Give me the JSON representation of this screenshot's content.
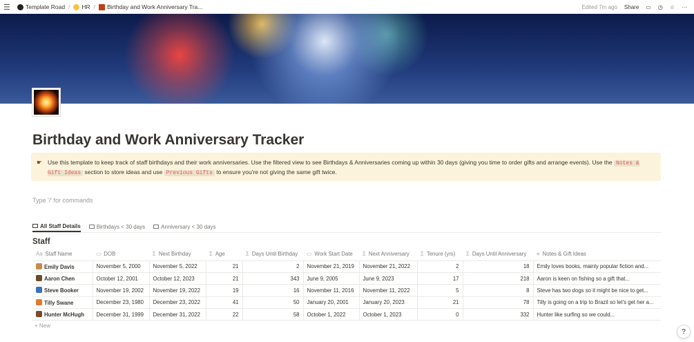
{
  "topbar": {
    "breadcrumbs": [
      "Template Road",
      "HR",
      "Birthday and Work Anniversary Tra..."
    ],
    "edited": "Edited 7m ago",
    "share": "Share"
  },
  "page": {
    "title": "Birthday and Work Anniversary Tracker",
    "callout": {
      "icon": "pointing-hand",
      "text1": "Use this template to keep track of staff birthdays and their work anniversaries. Use the filtered view to see Birthdays & Anniversaries coming up within 30 days (giving you time to order gifts and arrange events). Use the ",
      "code1": "Notes & Gift Ideas",
      "text2": " section to store ideas and use ",
      "code2": "Previous Gifts",
      "text3": " to ensure you're not giving the same gift twice."
    },
    "placeholder": "Type '/' for commands"
  },
  "tabs": [
    {
      "label": "All Staff Details",
      "active": true
    },
    {
      "label": "Birthdays < 30 days"
    },
    {
      "label": "Anniversary < 30 days"
    }
  ],
  "database": {
    "title": "Staff",
    "columns": [
      {
        "icon": "Aa",
        "label": "Staff Name"
      },
      {
        "icon": "▭",
        "label": "DOB"
      },
      {
        "icon": "Σ",
        "label": "Next Birthday"
      },
      {
        "icon": "Σ",
        "label": "Age"
      },
      {
        "icon": "Σ",
        "label": "Days Until Birthday"
      },
      {
        "icon": "▭",
        "label": "Work Start Date"
      },
      {
        "icon": "Σ",
        "label": "Next Anniversary"
      },
      {
        "icon": "Σ",
        "label": "Tenure (yrs)"
      },
      {
        "icon": "Σ",
        "label": "Days Until Anniversary"
      },
      {
        "icon": "≡",
        "label": "Notes & Gift Ideas"
      }
    ],
    "rows": [
      [
        "Emily Davis",
        "November 5, 2000",
        "November 5, 2022",
        "21",
        "2",
        "November 21, 2019",
        "November 21, 2022",
        "2",
        "18",
        "Emily loves books, mainly popular fiction and..."
      ],
      [
        "Aaron Chen",
        "October 12, 2001",
        "October 12, 2023",
        "21",
        "343",
        "June 9, 2005",
        "June 9, 2023",
        "17",
        "218",
        "Aaron is keen on fishing so a gift that..."
      ],
      [
        "Steve Booker",
        "November 19, 2002",
        "November 19, 2022",
        "19",
        "16",
        "November 11, 2016",
        "November 11, 2022",
        "5",
        "8",
        "Steve has two dogs so it might be nice to get..."
      ],
      [
        "Tilly Swane",
        "December 23, 1980",
        "December 23, 2022",
        "41",
        "50",
        "January 20, 2001",
        "January 20, 2023",
        "21",
        "78",
        "Tilly is going on a trip to Brazil so let's get her a..."
      ],
      [
        "Hunter McHugh",
        "December 31, 1999",
        "December 31, 2022",
        "22",
        "58",
        "October 1, 2022",
        "October 1, 2023",
        "0",
        "332",
        "Hunter like surfing so we could..."
      ]
    ],
    "new_label": "+ New"
  },
  "help": "?",
  "colors": {
    "callout_bg": "#fbf3db",
    "code_text": "#eb5757"
  }
}
